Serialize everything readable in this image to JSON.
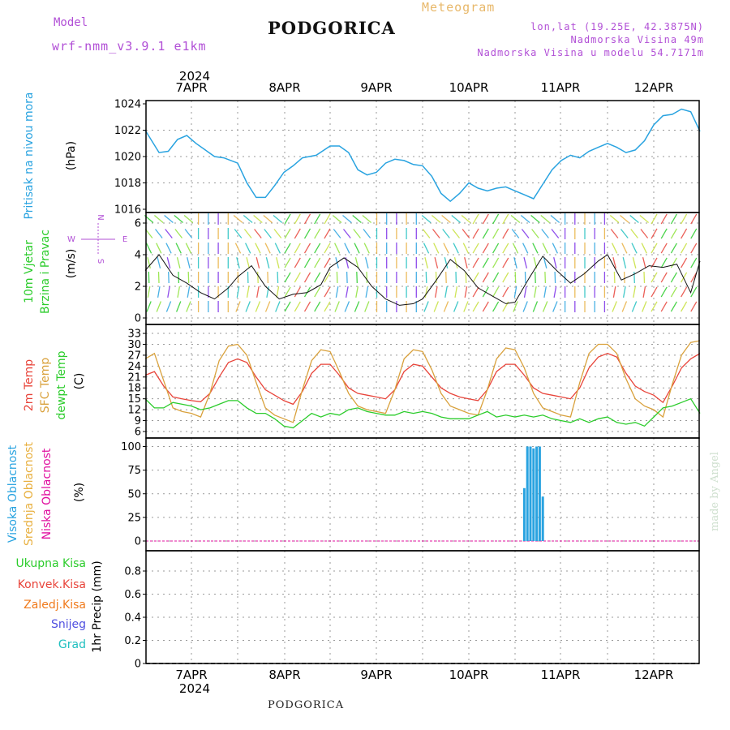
{
  "header": {
    "model_label": "Model",
    "model_name": "wrf-nmm_v3.9.1  e1km",
    "station": "PODGORICA",
    "meteogram_label": "Meteogram",
    "lonlat": "lon,lat (19.25E, 42.3875N)",
    "elevation": "Nadmorska Visina 49m",
    "model_elevation": "Nadmorska Visina u modelu 54.7171m",
    "footer_station": "PODGORICA",
    "credit": "made by Angel"
  },
  "time_axis": {
    "year": "2024",
    "days": [
      "7APR",
      "8APR",
      "9APR",
      "10APR",
      "11APR",
      "12APR"
    ]
  },
  "colors": {
    "pressure": "#29a3e0",
    "temp2m": "#e8443a",
    "sfc_temp": "#d9a13c",
    "dewpt": "#2bcc2b",
    "high_cloud": "#29a3e0",
    "mid_cloud": "#e8b040",
    "low_cloud": "#e0109f",
    "total_precip": "#2bcc2b",
    "conv_precip": "#e8443a",
    "frozen_precip": "#f07a1c",
    "snow": "#5050e0",
    "graupel": "#20c0c0",
    "wind_label": "#2bcc2b",
    "compass": "#b14fd6"
  },
  "panels": {
    "pressure": {
      "label": "Pritisak na nivou mora",
      "unit": "(hPa)"
    },
    "wind": {
      "label": "10m Vjetar",
      "label2": "Brzina i Pravac",
      "unit": "(m/s)",
      "compass_n": "N",
      "compass_s": "S",
      "compass_w": "W",
      "compass_e": "E"
    },
    "temp": {
      "label_2m": "2m Temp",
      "label_sfc": "SFC Temp",
      "label_dewpt": "dewpt Temp",
      "unit": "(C)"
    },
    "cloud": {
      "label_high": "Visoka Oblacnost",
      "label_mid": "Srednja Oblacnost",
      "label_low": "Niska Oblacnost",
      "unit": "(%)"
    },
    "precip": {
      "label_total": "Ukupna Kisa",
      "label_conv": "Konvek.Kisa",
      "label_frozen": "Zaledj.Kisa",
      "label_snow": "Snijeg",
      "label_graupel": "Grad",
      "unit": "1hr Precip (mm)"
    }
  },
  "chart_data": [
    {
      "type": "line",
      "panel": "pressure",
      "xlim": [
        0,
        6
      ],
      "ylim": [
        1016,
        1024.5
      ],
      "yticks": [
        "1016",
        "1018",
        "1020",
        "1022",
        "1024"
      ],
      "x": [
        0,
        0.15,
        0.25,
        0.35,
        0.45,
        0.55,
        0.65,
        0.75,
        0.85,
        1.0,
        1.1,
        1.2,
        1.3,
        1.4,
        1.5,
        1.6,
        1.7,
        1.85,
        2.0,
        2.1,
        2.2,
        2.3,
        2.4,
        2.5,
        2.6,
        2.7,
        2.8,
        2.9,
        3.0,
        3.1,
        3.2,
        3.3,
        3.4,
        3.5,
        3.6,
        3.7,
        3.8,
        3.9,
        4.0,
        4.1,
        4.2,
        4.3,
        4.4,
        4.5,
        4.6,
        4.7,
        4.8,
        4.9,
        5.0,
        5.1,
        5.2,
        5.3,
        5.4,
        5.5,
        5.6,
        5.7,
        5.8,
        5.9,
        6.0
      ],
      "y": [
        1022.0,
        1020.3,
        1020.4,
        1021.3,
        1021.6,
        1021.0,
        1020.5,
        1020.0,
        1019.9,
        1019.5,
        1018.0,
        1016.9,
        1016.9,
        1017.8,
        1018.8,
        1019.3,
        1019.9,
        1020.1,
        1020.8,
        1020.8,
        1020.3,
        1019.0,
        1018.6,
        1018.8,
        1019.5,
        1019.8,
        1019.7,
        1019.4,
        1019.3,
        1018.5,
        1017.2,
        1016.6,
        1017.2,
        1018.0,
        1017.6,
        1017.4,
        1017.6,
        1017.7,
        1017.4,
        1017.1,
        1016.8,
        1017.9,
        1019.0,
        1019.7,
        1020.1,
        1019.9,
        1020.4,
        1020.7,
        1021.0,
        1020.7,
        1020.3,
        1020.5,
        1021.2,
        1022.4,
        1023.1,
        1023.2,
        1023.6,
        1023.4,
        1021.9
      ]
    },
    {
      "type": "line",
      "panel": "wind",
      "xlim": [
        0,
        6
      ],
      "ylim": [
        0,
        6.5
      ],
      "yticks": [
        "0",
        "2",
        "4",
        "6"
      ],
      "series": [
        {
          "name": "wind speed",
          "x": [
            0,
            0.15,
            0.3,
            0.45,
            0.6,
            0.75,
            0.9,
            1.0,
            1.15,
            1.3,
            1.45,
            1.6,
            1.75,
            1.9,
            2.0,
            2.15,
            2.3,
            2.45,
            2.6,
            2.75,
            2.9,
            3.0,
            3.15,
            3.3,
            3.45,
            3.6,
            3.75,
            3.9,
            4.0,
            4.15,
            4.3,
            4.45,
            4.6,
            4.75,
            4.9,
            5.0,
            5.15,
            5.3,
            5.45,
            5.6,
            5.75,
            5.9,
            6.0
          ],
          "y": [
            3.0,
            4.0,
            2.7,
            2.2,
            1.6,
            1.2,
            1.9,
            2.6,
            3.3,
            2.0,
            1.2,
            1.5,
            1.6,
            2.1,
            3.2,
            3.8,
            3.2,
            2.0,
            1.2,
            0.8,
            0.9,
            1.2,
            2.4,
            3.7,
            3.0,
            1.9,
            1.4,
            0.9,
            1.0,
            2.5,
            3.9,
            3.0,
            2.2,
            2.8,
            3.6,
            4.0,
            2.4,
            2.8,
            3.3,
            3.2,
            3.4,
            1.6,
            3.6
          ]
        }
      ]
    },
    {
      "type": "line",
      "panel": "temperature",
      "xlim": [
        0,
        6
      ],
      "ylim": [
        6,
        33
      ],
      "yticks": [
        "6",
        "9",
        "12",
        "15",
        "18",
        "21",
        "24",
        "27",
        "30",
        "33"
      ],
      "x": [
        0,
        0.1,
        0.2,
        0.3,
        0.4,
        0.5,
        0.6,
        0.7,
        0.8,
        0.9,
        1.0,
        1.1,
        1.2,
        1.3,
        1.4,
        1.5,
        1.6,
        1.7,
        1.8,
        1.9,
        2.0,
        2.1,
        2.2,
        2.3,
        2.4,
        2.5,
        2.6,
        2.7,
        2.8,
        2.9,
        3.0,
        3.1,
        3.2,
        3.3,
        3.4,
        3.5,
        3.6,
        3.7,
        3.8,
        3.9,
        4.0,
        4.1,
        4.2,
        4.3,
        4.4,
        4.5,
        4.6,
        4.7,
        4.8,
        4.9,
        5.0,
        5.1,
        5.2,
        5.3,
        5.4,
        5.5,
        5.6,
        5.7,
        5.8,
        5.9,
        6.0
      ],
      "series": [
        {
          "name": "2m Temp",
          "y": [
            21.5,
            22.5,
            18.5,
            15.5,
            15.0,
            14.5,
            14.2,
            16.5,
            21.0,
            25.0,
            26.0,
            25.0,
            21.0,
            17.5,
            16.0,
            14.5,
            13.5,
            17.0,
            22.0,
            24.5,
            24.5,
            21.5,
            18.0,
            16.5,
            16.0,
            15.5,
            15.0,
            17.5,
            22.5,
            24.5,
            24.0,
            21.0,
            18.0,
            16.5,
            15.5,
            15.0,
            14.5,
            17.5,
            22.5,
            24.5,
            24.5,
            21.5,
            18.0,
            16.5,
            16.0,
            15.5,
            15.0,
            18.0,
            23.5,
            26.5,
            27.5,
            26.5,
            22.0,
            18.5,
            17.0,
            16.0,
            14.0,
            18.5,
            23.5,
            26.0,
            27.5
          ]
        },
        {
          "name": "SFC Temp",
          "y": [
            26.0,
            27.5,
            20.0,
            12.5,
            11.5,
            11.0,
            10.0,
            16.5,
            25.5,
            29.5,
            30.0,
            27.0,
            19.5,
            12.5,
            10.5,
            9.5,
            8.5,
            17.5,
            25.5,
            28.5,
            28.0,
            22.5,
            16.5,
            13.0,
            12.0,
            11.5,
            11.0,
            17.5,
            26.0,
            28.5,
            28.0,
            23.0,
            16.5,
            13.0,
            12.0,
            11.0,
            10.5,
            17.5,
            26.0,
            29.0,
            28.5,
            23.5,
            16.5,
            12.5,
            11.5,
            10.5,
            10.0,
            19.5,
            27.5,
            30.0,
            30.0,
            27.5,
            20.5,
            15.0,
            13.0,
            12.0,
            10.0,
            19.0,
            27.0,
            30.5,
            31.0
          ]
        },
        {
          "name": "dewpt Temp",
          "y": [
            15.0,
            12.5,
            12.5,
            14.0,
            13.5,
            13.0,
            12.0,
            12.5,
            13.5,
            14.5,
            14.5,
            12.5,
            11.0,
            11.0,
            9.5,
            7.5,
            7.0,
            9.0,
            11.0,
            10.0,
            11.0,
            10.5,
            12.0,
            12.5,
            11.5,
            11.0,
            10.5,
            10.5,
            11.5,
            11.0,
            11.5,
            11.0,
            10.0,
            9.5,
            9.5,
            9.5,
            10.5,
            11.5,
            10.0,
            10.5,
            10.0,
            10.5,
            10.0,
            10.5,
            9.5,
            9.0,
            8.5,
            9.5,
            8.5,
            9.5,
            10.0,
            8.5,
            8.0,
            8.5,
            7.5,
            10.0,
            12.5,
            13.0,
            14.0,
            15.0,
            11.0
          ]
        }
      ]
    },
    {
      "type": "bar",
      "panel": "cloud",
      "xlim": [
        0,
        6
      ],
      "ylim": [
        0,
        100
      ],
      "yticks": [
        "0",
        "25",
        "50",
        "75",
        "100"
      ],
      "series": [
        {
          "name": "Visoka Oblacnost",
          "x": [
            4.1,
            4.133,
            4.167,
            4.2,
            4.233,
            4.267,
            4.3
          ],
          "y": [
            56,
            100,
            100,
            98,
            100,
            100,
            47
          ]
        }
      ]
    },
    {
      "type": "bar",
      "panel": "precip",
      "xlim": [
        0,
        6
      ],
      "ylim": [
        0,
        1.0
      ],
      "yticks": [
        "0",
        "0.2",
        "0.4",
        "0.6",
        "0.8"
      ],
      "series": [
        {
          "name": "Ukupna Kisa",
          "x": [],
          "y": []
        }
      ]
    }
  ]
}
